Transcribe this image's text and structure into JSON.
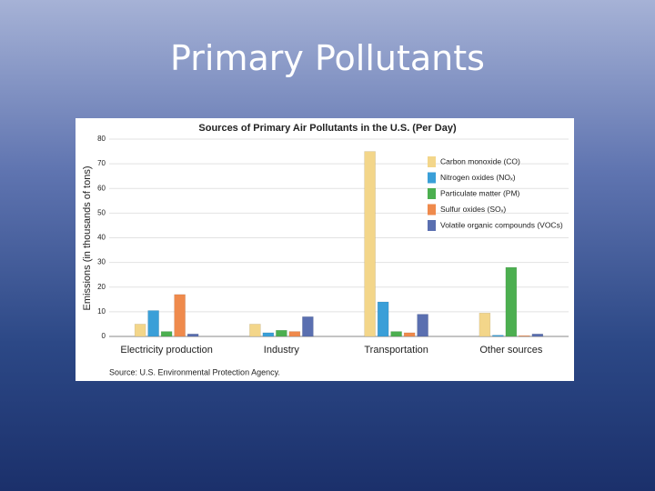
{
  "slide_title": "Primary Pollutants",
  "chart_data": {
    "type": "bar",
    "title": "Sources of Primary Air Pollutants in the U.S. (Per Day)",
    "y_label": "Emissions (in thousands of tons)",
    "source": "Source: U.S. Environmental Protection Agency.",
    "categories": [
      "Electricity production",
      "Industry",
      "Transportation",
      "Other sources"
    ],
    "series": [
      {
        "name": "Carbon monoxide (CO)",
        "color": "#f3d68a",
        "values": [
          5,
          5,
          75,
          9.5
        ]
      },
      {
        "name": "Nitrogen oxides (NOₓ)",
        "color": "#3a9fd8",
        "values": [
          10.5,
          1.5,
          14,
          0.5
        ]
      },
      {
        "name": "Particulate matter (PM)",
        "color": "#4caf50",
        "values": [
          2,
          2.5,
          2,
          28
        ]
      },
      {
        "name": "Sulfur oxides (SOₓ)",
        "color": "#ef8a4c",
        "values": [
          17,
          2,
          1.5,
          0.3
        ]
      },
      {
        "name": "Volatile organic compounds (VOCs)",
        "color": "#5a6fb0",
        "values": [
          1,
          8,
          9,
          1
        ]
      }
    ],
    "ylim": [
      0,
      80
    ],
    "yticks": [
      0,
      10,
      20,
      30,
      40,
      50,
      60,
      70,
      80
    ],
    "grid": true,
    "legend": "upper-right"
  }
}
